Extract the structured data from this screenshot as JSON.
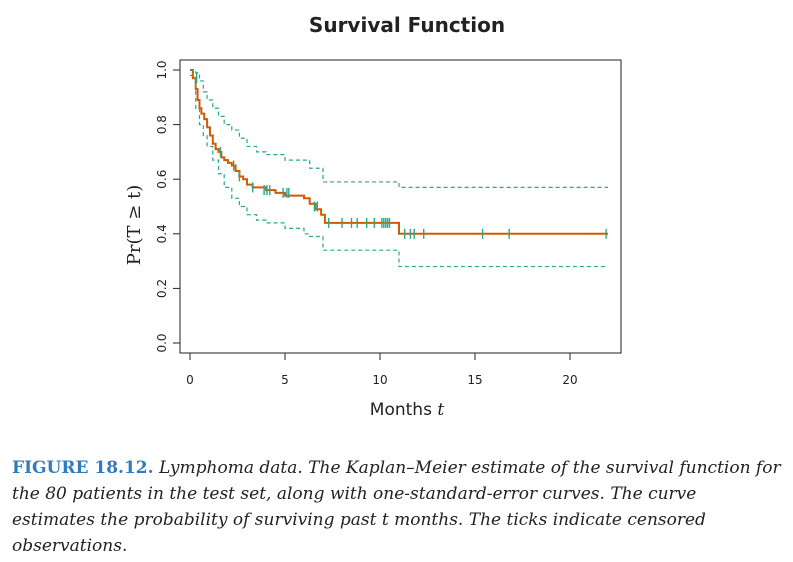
{
  "chart_data": {
    "type": "line",
    "title": "Survival Function",
    "xlabel": "Months",
    "xlabel_var": "t",
    "ylabel": "Pr(T ≥ t)",
    "xlim": [
      0,
      22.5
    ],
    "ylim": [
      0,
      1.05
    ],
    "xticks": [
      0,
      5,
      10,
      15,
      20
    ],
    "yticks": [
      0.0,
      0.2,
      0.4,
      0.6,
      0.8,
      1.0
    ],
    "ytick_labels": [
      "0.0",
      "0.2",
      "0.4",
      "0.6",
      "0.8",
      "1.0"
    ],
    "grid": false,
    "series": [
      {
        "role": "estimate",
        "color": "#d45a00",
        "style": "solid-step",
        "x": [
          0,
          0.15,
          0.3,
          0.4,
          0.5,
          0.6,
          0.75,
          0.9,
          1.05,
          1.2,
          1.35,
          1.5,
          1.65,
          1.8,
          2.0,
          2.2,
          2.4,
          2.6,
          2.8,
          3.0,
          3.3,
          3.6,
          4.0,
          4.5,
          5.0,
          5.5,
          6.0,
          6.3,
          6.6,
          6.9,
          7.1,
          8.0,
          9.0,
          10.0,
          10.8,
          11.0,
          22.0
        ],
        "y": [
          1.0,
          0.97,
          0.93,
          0.89,
          0.86,
          0.84,
          0.82,
          0.79,
          0.76,
          0.73,
          0.71,
          0.7,
          0.68,
          0.67,
          0.66,
          0.65,
          0.63,
          0.61,
          0.6,
          0.58,
          0.57,
          0.57,
          0.56,
          0.55,
          0.54,
          0.54,
          0.53,
          0.51,
          0.49,
          0.47,
          0.44,
          0.44,
          0.44,
          0.44,
          0.44,
          0.4,
          0.4
        ]
      },
      {
        "role": "upper",
        "color": "#2aa88a",
        "style": "dashed-step",
        "x": [
          0,
          0.3,
          0.5,
          0.7,
          0.9,
          1.2,
          1.5,
          1.8,
          2.2,
          2.6,
          3.0,
          3.5,
          4.0,
          5.0,
          6.0,
          6.3,
          7.0,
          11.0,
          22.0
        ],
        "y": [
          1.0,
          0.99,
          0.96,
          0.92,
          0.89,
          0.86,
          0.83,
          0.8,
          0.78,
          0.75,
          0.72,
          0.7,
          0.69,
          0.67,
          0.67,
          0.64,
          0.59,
          0.57,
          0.57
        ]
      },
      {
        "role": "lower",
        "color": "#2aa88a",
        "style": "dashed-step",
        "x": [
          0,
          0.3,
          0.5,
          0.7,
          0.9,
          1.2,
          1.5,
          1.8,
          2.2,
          2.6,
          3.0,
          3.5,
          4.0,
          5.0,
          6.0,
          6.3,
          7.0,
          11.0,
          22.0
        ],
        "y": [
          0.98,
          0.86,
          0.8,
          0.76,
          0.72,
          0.67,
          0.62,
          0.57,
          0.53,
          0.5,
          0.47,
          0.45,
          0.44,
          0.42,
          0.4,
          0.39,
          0.34,
          0.28,
          0.28
        ]
      }
    ],
    "censored": {
      "color": "#2aa88a",
      "x": [
        0.35,
        1.6,
        2.3,
        2.6,
        3.3,
        3.9,
        4.05,
        4.2,
        4.9,
        5.1,
        5.2,
        6.55,
        6.7,
        7.3,
        8.0,
        8.5,
        8.8,
        9.3,
        9.7,
        10.1,
        10.2,
        10.3,
        10.4,
        10.5,
        11.3,
        11.6,
        11.8,
        12.3,
        15.4,
        16.8,
        21.9
      ],
      "y": [
        0.97,
        0.7,
        0.65,
        0.61,
        0.57,
        0.56,
        0.56,
        0.56,
        0.55,
        0.55,
        0.55,
        0.5,
        0.5,
        0.44,
        0.44,
        0.44,
        0.44,
        0.44,
        0.44,
        0.44,
        0.44,
        0.44,
        0.44,
        0.44,
        0.4,
        0.4,
        0.4,
        0.4,
        0.4,
        0.4,
        0.4
      ]
    }
  },
  "caption": {
    "figure_label": "FIGURE 18.12.",
    "text": "Lymphoma data. The Kaplan–Meier estimate of the survival function for the 80 patients in the test set, along with one-standard-error curves. The curve estimates the probability of surviving past t months. The ticks indicate censored observations."
  }
}
